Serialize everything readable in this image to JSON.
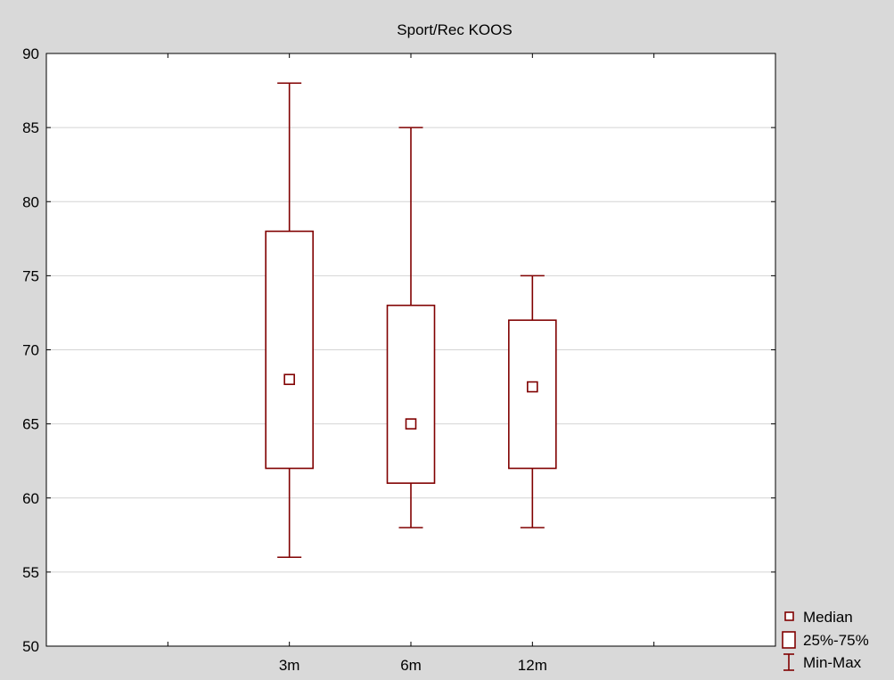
{
  "chart_data": {
    "type": "boxplot",
    "title": "Sport/Rec KOOS",
    "xlabel": "",
    "ylabel": "",
    "ylim": [
      50,
      90
    ],
    "yticks": [
      50,
      55,
      60,
      65,
      70,
      75,
      80,
      85,
      90
    ],
    "x_slots": 6,
    "categories": [
      "3m",
      "6m",
      "12m"
    ],
    "category_slots": [
      2,
      3,
      4
    ],
    "series": [
      {
        "category": "3m",
        "min": 56,
        "q1": 62,
        "median": 68,
        "q3": 78,
        "max": 88
      },
      {
        "category": "6m",
        "min": 58,
        "q1": 61,
        "median": 65,
        "q3": 73,
        "max": 85
      },
      {
        "category": "12m",
        "min": 58,
        "q1": 62,
        "median": 67.5,
        "q3": 72,
        "max": 75
      }
    ],
    "grid": true,
    "legend": {
      "position": "bottom-right",
      "items": [
        {
          "label": "Median",
          "symbol": "small-square"
        },
        {
          "label": "25%-75%",
          "symbol": "box"
        },
        {
          "label": "Min-Max",
          "symbol": "whisker"
        }
      ]
    },
    "colors": {
      "series": "#800000",
      "background": "#d9d9d9",
      "plot_area": "#ffffff",
      "grid": "#d4d4d4"
    }
  }
}
